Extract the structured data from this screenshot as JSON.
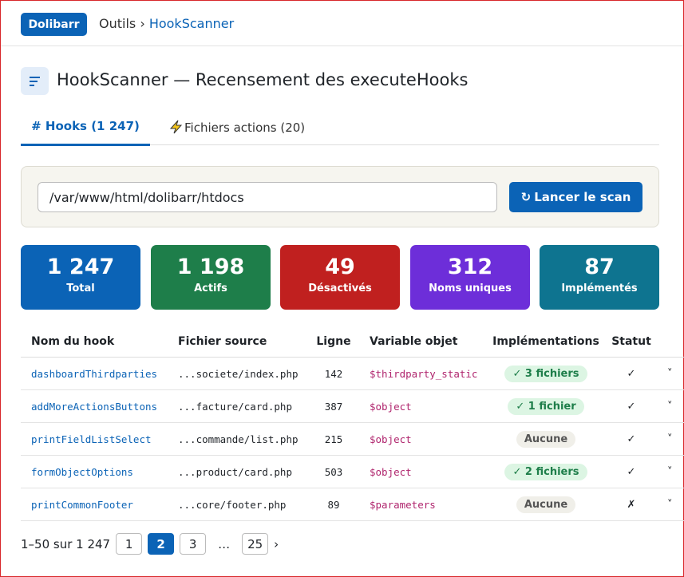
{
  "header": {
    "brand": "Dolibarr",
    "breadcrumb": [
      "Outils",
      "HookScanner"
    ]
  },
  "page": {
    "title": "HookScanner — Recensement des executeHooks"
  },
  "tabs": [
    "# Hooks (1 247)",
    "Fichiers actions (20)"
  ],
  "scan": {
    "path": "/var/www/html/dolibarr/htdocs",
    "button": "Lancer le scan"
  },
  "stats": [
    {
      "value": "1 247",
      "label": "Total"
    },
    {
      "value": "1 198",
      "label": "Actifs"
    },
    {
      "value": "49",
      "label": "Désactivés"
    },
    {
      "value": "312",
      "label": "Noms uniques"
    },
    {
      "value": "87",
      "label": "Implémentés"
    }
  ],
  "table": {
    "columns": [
      "Nom du hook",
      "Fichier source",
      "Ligne",
      "Variable objet",
      "Implémentations",
      "Statut"
    ],
    "rows": [
      [
        "dashboardThirdparties",
        "...societe/index.php",
        "142",
        "$thirdparty_static",
        "✓ 3 fichiers",
        "✓"
      ],
      [
        "addMoreActionsButtons",
        "...facture/card.php",
        "387",
        "$object",
        "✓ 1 fichier",
        "✓"
      ],
      [
        "printFieldListSelect",
        "...commande/list.php",
        "215",
        "$object",
        "Aucune",
        "✓"
      ],
      [
        "formObjectOptions",
        "...product/card.php",
        "503",
        "$object",
        "✓ 2 fichiers",
        "✓"
      ],
      [
        "printCommonFooter",
        "...core/footer.php",
        "89",
        "$parameters",
        "Aucune",
        "✗"
      ]
    ]
  },
  "pagination": {
    "summary": "1–50 sur 1 247",
    "pages": [
      "1",
      "2",
      "3",
      "…",
      "25"
    ]
  }
}
